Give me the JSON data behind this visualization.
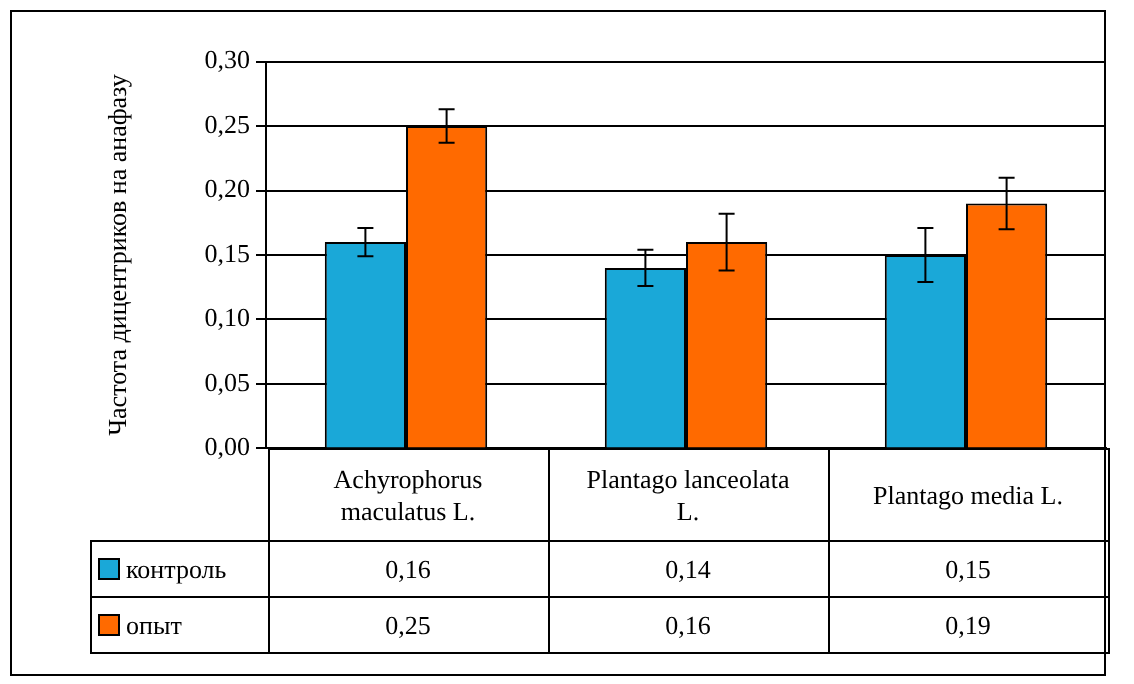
{
  "chart_data": {
    "type": "bar",
    "ylabel": "Частота дицентриков на анафазу",
    "categories": [
      "Achyrophorus maculatus L.",
      "Plantago lanceolata L.",
      "Plantago media L."
    ],
    "series": [
      {
        "name": "контроль",
        "color": "#1aa8d8",
        "values": [
          0.16,
          0.14,
          0.15
        ],
        "value_labels": [
          "0,16",
          "0,14",
          "0,15"
        ],
        "errors": [
          0.011,
          0.014,
          0.021
        ]
      },
      {
        "name": "опыт",
        "color": "#ff6a00",
        "values": [
          0.25,
          0.16,
          0.19
        ],
        "value_labels": [
          "0,25",
          "0,16",
          "0,19"
        ],
        "errors": [
          0.013,
          0.022,
          0.02
        ]
      }
    ],
    "ylim": [
      0,
      0.3
    ],
    "yticks": [
      {
        "value": 0,
        "label": "0,00"
      },
      {
        "value": 0.05,
        "label": "0,05"
      },
      {
        "value": 0.1,
        "label": "0,10"
      },
      {
        "value": 0.15,
        "label": "0,15"
      },
      {
        "value": 0.2,
        "label": "0,20"
      },
      {
        "value": 0.25,
        "label": "0,25"
      },
      {
        "value": 0.3,
        "label": "0,30"
      }
    ],
    "grid": "y",
    "legend": "bottom left"
  }
}
